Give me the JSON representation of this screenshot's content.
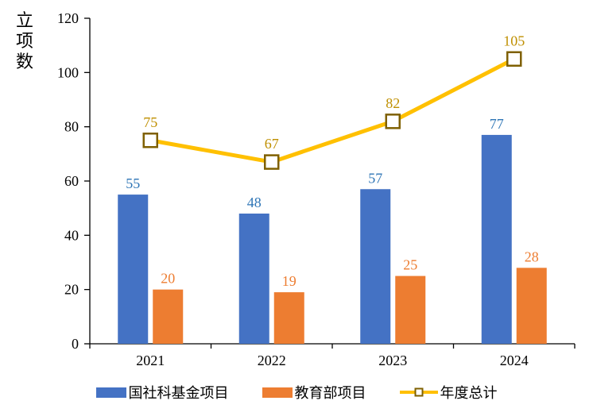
{
  "chart_data": {
    "type": "bar+line",
    "categories": [
      "2021",
      "2022",
      "2023",
      "2024"
    ],
    "series": [
      {
        "name": "国社科基金项目",
        "type": "bar",
        "color": "#4472C4",
        "label_color": "#2E75B6",
        "values": [
          55,
          48,
          57,
          77
        ]
      },
      {
        "name": "教育部项目",
        "type": "bar",
        "color": "#ED7D31",
        "label_color": "#ED7D31",
        "values": [
          20,
          19,
          25,
          28
        ]
      },
      {
        "name": "年度总计",
        "type": "line",
        "color": "#FFC000",
        "marker": "hollow-square",
        "marker_border_color": "#7F6000",
        "label_color": "#BF8F00",
        "values": [
          75,
          67,
          82,
          105
        ]
      }
    ],
    "title": "",
    "xlabel": "",
    "ylabel": "立项数",
    "ylim": [
      0,
      120
    ],
    "ytick_step": 20,
    "yticks": [
      0,
      20,
      40,
      60,
      80,
      100,
      120
    ],
    "grid": false,
    "legend_position": "bottom",
    "axis_color": "#000000",
    "background_color": "#ffffff"
  }
}
